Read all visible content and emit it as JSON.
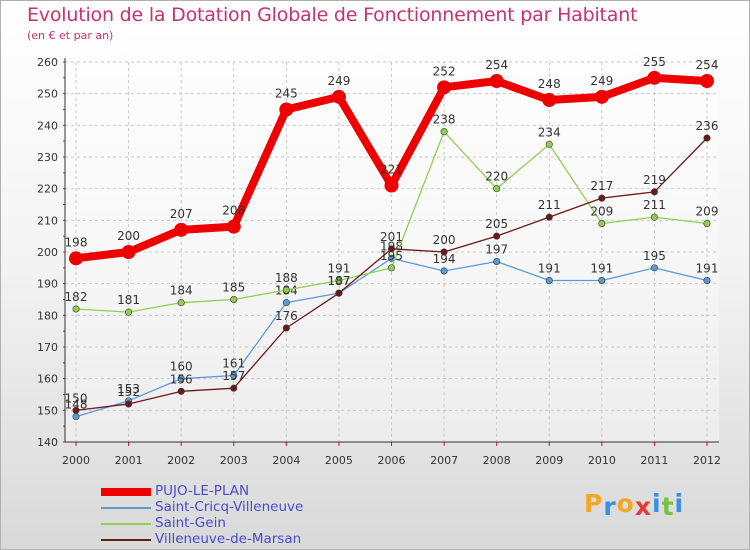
{
  "title": "Evolution de la Dotation Globale de Fonctionnement par Habitant",
  "subtitle": "(en € et par an)",
  "brand": {
    "letters": [
      "P",
      "r",
      "o",
      "x",
      "i",
      "t",
      "i"
    ],
    "colors": [
      "#f5a623",
      "#3a8ee6",
      "#f5a623",
      "#e23b3b",
      "#3a8ee6",
      "#7ac143",
      "#3a8ee6"
    ]
  },
  "chart_data": {
    "type": "line",
    "title": "Evolution de la Dotation Globale de Fonctionnement par Habitant",
    "subtitle": "(en € et par an)",
    "x": [
      "2000",
      "2001",
      "2002",
      "2003",
      "2004",
      "2005",
      "2006",
      "2007",
      "2008",
      "2009",
      "2010",
      "2011",
      "2012"
    ],
    "ylim": [
      140,
      260
    ],
    "yticks": [
      "140",
      "150",
      "160",
      "170",
      "180",
      "190",
      "200",
      "210",
      "220",
      "230",
      "240",
      "250",
      "260"
    ],
    "grid": true,
    "legend_position": "bottom-left",
    "series": [
      {
        "name": "PUJO-LE-PLAN",
        "color": "#ee0000",
        "width": "thick",
        "values": [
          198,
          200,
          207,
          208,
          245,
          249,
          221,
          252,
          254,
          248,
          249,
          255,
          254
        ],
        "labels": [
          "198",
          "200",
          "207",
          "208",
          "245",
          "249",
          "221",
          "252",
          "254",
          "248",
          "249",
          "255",
          "254"
        ]
      },
      {
        "name": "Saint-Cricq-Villeneuve",
        "color": "#5b9bd5",
        "width": "thin",
        "values": [
          148,
          153,
          160,
          161,
          184,
          187,
          198,
          194,
          197,
          191,
          191,
          195,
          191
        ],
        "labels": [
          "148",
          "153",
          "160",
          "161",
          "184",
          "187",
          "198",
          "194",
          "197",
          "191",
          "191",
          "195",
          "191"
        ]
      },
      {
        "name": "Saint-Gein",
        "color": "#8fd14f",
        "width": "thin",
        "values": [
          182,
          181,
          184,
          185,
          188,
          191,
          195,
          238,
          220,
          234,
          209,
          211,
          209
        ],
        "labels": [
          "182",
          "181",
          "184",
          "185",
          "188",
          "191",
          "195",
          "238",
          "220",
          "234",
          "209",
          "211",
          "209"
        ]
      },
      {
        "name": "Villeneuve-de-Marsan",
        "color": "#6b1a1a",
        "width": "thin",
        "values": [
          150,
          152,
          156,
          157,
          176,
          187,
          201,
          200,
          205,
          211,
          217,
          219,
          236
        ],
        "labels": [
          "150",
          "152",
          "156",
          "157",
          "176",
          "187",
          "201",
          "200",
          "205",
          "211",
          "217",
          "219",
          "236"
        ]
      }
    ]
  }
}
